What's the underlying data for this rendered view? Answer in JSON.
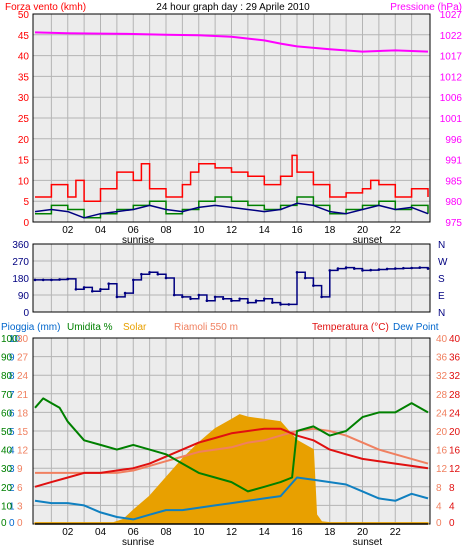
{
  "title": "24 hour graph day : 29 Aprile 2010",
  "x_ticks": [
    "02",
    "04",
    "06",
    "08",
    "10",
    "12",
    "14",
    "16",
    "18",
    "20",
    "22"
  ],
  "sun_labels": {
    "sunrise": "sunrise",
    "sunset": "sunset"
  },
  "colors": {
    "background": "#ececec",
    "grid": "#b4b4b4",
    "wind_axis": "#ff0000",
    "pressure": "#ff00ff",
    "gust": "#ff0000",
    "wind_avg": "#008000",
    "wind_line": "#000080",
    "direction": "#000080",
    "rain": "#000000",
    "humidity": "#008000",
    "solar": "#e8a000",
    "riamoli": "#1080c0",
    "temperature": "#e01010",
    "dewpoint": "#f08060",
    "blue_label": "#0066cc"
  },
  "chart_data": [
    {
      "type": "line",
      "title": "24 hour graph day : 29 Aprile 2010",
      "xlabel": "",
      "xlim": [
        0,
        24
      ],
      "left_axis": {
        "label": "Forza vento (kmh)",
        "ticks": [
          "0",
          "5",
          "10",
          "15",
          "20",
          "25",
          "30",
          "35",
          "40",
          "45",
          "50"
        ],
        "ylim": [
          0,
          50
        ]
      },
      "right_axis": {
        "label": "Pressione (hPa)",
        "ticks": [
          "975",
          "980",
          "985",
          "991",
          "996",
          "1001",
          "1006",
          "1012",
          "1017",
          "1022",
          "1027"
        ],
        "ylim": [
          975,
          1027
        ]
      },
      "series": [
        {
          "name": "Pressione (hPa)",
          "axis": "right",
          "x": [
            0,
            2,
            4,
            6,
            8,
            10,
            12,
            14,
            15,
            16,
            18,
            20,
            22,
            24
          ],
          "y": [
            1022.4,
            1022.2,
            1022.1,
            1022.0,
            1021.8,
            1021.7,
            1021.3,
            1020.4,
            1019.6,
            1018.9,
            1018.2,
            1017.6,
            1017.9,
            1017.6
          ]
        },
        {
          "x": [
            0,
            1,
            2,
            2.5,
            3,
            4,
            5,
            6,
            6.5,
            7,
            8,
            9,
            9.5,
            10,
            11,
            12,
            13,
            14,
            15,
            15.7,
            16,
            17,
            18,
            19,
            20,
            20.5,
            21,
            22,
            23,
            24
          ],
          "y": [
            6,
            9,
            6,
            10,
            5,
            8,
            12,
            10,
            14,
            8,
            6,
            9,
            12,
            14,
            13,
            12,
            11,
            9,
            11,
            16,
            12,
            9,
            6,
            7,
            8,
            10,
            9,
            6,
            8,
            6
          ]
        },
        {
          "x": [
            0,
            1,
            2,
            3,
            4,
            5,
            6,
            7,
            8,
            9,
            10,
            11,
            12,
            13,
            14,
            15,
            16,
            17,
            18,
            19,
            20,
            21,
            22,
            23,
            24
          ],
          "y": [
            2,
            4,
            3,
            1,
            2,
            3,
            4,
            5,
            2,
            3,
            5,
            6,
            5,
            4,
            3,
            4,
            6,
            4,
            2,
            3,
            4,
            5,
            3,
            4,
            2
          ]
        },
        {
          "x": [
            0,
            1,
            2,
            3,
            4,
            5,
            6,
            7,
            8,
            9,
            10,
            11,
            12,
            13,
            14,
            15,
            16,
            17,
            18,
            19,
            20,
            21,
            22,
            23,
            24
          ],
          "y": [
            2.5,
            3,
            2.5,
            1,
            2,
            2.5,
            3,
            4,
            3,
            2.5,
            3.5,
            4,
            3.5,
            3,
            2.5,
            3,
            4.5,
            4,
            2.5,
            2,
            3,
            4,
            3,
            3.5,
            2
          ]
        }
      ]
    },
    {
      "type": "scatter",
      "xlim": [
        0,
        24
      ],
      "left_axis": {
        "ticks": [
          "0",
          "90",
          "180",
          "270",
          "360"
        ],
        "ylim": [
          0,
          360
        ]
      },
      "right_axis": {
        "ticks": [
          "N",
          "E",
          "S",
          "W",
          "N"
        ]
      },
      "series": [
        {
          "x": [
            0,
            0.5,
            1,
            1.5,
            2,
            2.5,
            3,
            3.5,
            4,
            4.5,
            5,
            5.5,
            6,
            6.5,
            7,
            7.5,
            8,
            8.5,
            9,
            9.5,
            10,
            10.5,
            11,
            11.5,
            12,
            12.5,
            13,
            13.5,
            14,
            14.5,
            15,
            15.5,
            16,
            16.5,
            17,
            17.5,
            18,
            18.5,
            19,
            19.5,
            20,
            20.5,
            21,
            21.5,
            22,
            22.5,
            23,
            23.5,
            24
          ],
          "y": [
            170,
            170,
            170,
            172,
            175,
            120,
            130,
            110,
            120,
            150,
            80,
            100,
            170,
            200,
            210,
            200,
            180,
            90,
            80,
            70,
            90,
            60,
            80,
            70,
            60,
            70,
            50,
            60,
            70,
            50,
            40,
            40,
            210,
            180,
            140,
            80,
            220,
            230,
            235,
            230,
            220,
            222,
            225,
            228,
            230,
            232,
            233,
            235,
            230
          ]
        }
      ]
    },
    {
      "type": "line",
      "xlim": [
        0,
        24
      ],
      "legend": [
        "Pioggia (mm)",
        "Umidita %",
        "Solar",
        "Riamoli 550 m",
        "Temperatura (°C)",
        "Dew Point"
      ],
      "axes": {
        "pioggia": {
          "ticks": [
            "0",
            "1",
            "2",
            "3",
            "4",
            "5",
            "6",
            "7",
            "8",
            "9",
            "10"
          ]
        },
        "umidita": {
          "ticks": [
            "0",
            "10",
            "20",
            "30",
            "40",
            "50",
            "60",
            "70",
            "80",
            "90",
            "100"
          ]
        },
        "riamoli": {
          "ticks": [
            "0",
            "3",
            "6",
            "9",
            "12",
            "15",
            "18",
            "21",
            "24",
            "27",
            "30"
          ],
          "ylim": [
            0,
            30
          ]
        },
        "temp_left": {
          "ticks": [
            "0",
            "4",
            "8",
            "12",
            "16",
            "20",
            "24",
            "28",
            "32",
            "36",
            "40"
          ],
          "ylim": [
            0,
            40
          ]
        },
        "temp_right": {
          "ticks": [
            "0",
            "4",
            "8",
            "12",
            "16",
            "20",
            "24",
            "28",
            "32",
            "36",
            "40"
          ],
          "ylim": [
            0,
            40
          ]
        }
      },
      "series": [
        {
          "name": "Umidita %",
          "axis": "temp_right",
          "x": [
            0,
            0.5,
            1,
            1.5,
            2,
            3,
            4,
            5,
            6,
            7,
            8,
            9,
            10,
            11,
            12,
            13,
            14,
            15,
            15.7,
            16,
            17,
            18,
            19,
            20,
            21,
            22,
            23,
            23.5,
            24
          ],
          "y": [
            25,
            27,
            26,
            25,
            22,
            18,
            17,
            16,
            17,
            16,
            15,
            13,
            11,
            10,
            9,
            7,
            8,
            9,
            10,
            20,
            21,
            19,
            20,
            23,
            24,
            24,
            26,
            25,
            24
          ]
        },
        {
          "name": "Solar",
          "axis": "temp_right",
          "x": [
            0,
            4.8,
            5.4,
            6,
            7,
            8,
            9,
            10,
            11,
            12,
            12.5,
            13,
            14,
            15,
            16,
            17,
            17.2,
            17.5,
            18,
            24
          ],
          "y": [
            0.3,
            0.3,
            1,
            3,
            6,
            10,
            14,
            17.5,
            20.5,
            22.5,
            23.5,
            23,
            22.5,
            22,
            18,
            16,
            2,
            0.5,
            0.3,
            0.3
          ]
        },
        {
          "name": "Riamoli 550 m",
          "axis": "temp_right",
          "x": [
            0,
            1,
            2,
            3,
            4,
            5,
            6,
            7,
            8,
            9,
            10,
            11,
            12,
            13,
            14,
            15,
            16,
            17,
            18,
            19,
            20,
            21,
            22,
            23,
            24
          ],
          "y": [
            5,
            4.5,
            4.5,
            4,
            2.5,
            1.5,
            1,
            2,
            3,
            3,
            3.5,
            4,
            4.5,
            5,
            5.5,
            6,
            10,
            9.5,
            9,
            8.5,
            7,
            5.5,
            5,
            6.5,
            5.5
          ]
        },
        {
          "name": "Temperatura (°C)",
          "axis": "temp_right",
          "x": [
            0,
            1,
            2,
            3,
            4,
            5,
            6,
            7,
            8,
            9,
            10,
            11,
            12,
            13,
            14,
            15,
            16,
            17,
            18,
            19,
            20,
            21,
            22,
            23,
            24
          ],
          "y": [
            8,
            9,
            10,
            11,
            11,
            11.5,
            12,
            13,
            14.5,
            16,
            17.5,
            18.5,
            19.5,
            20,
            20.5,
            20.5,
            19,
            18,
            16,
            15,
            14,
            13.5,
            13,
            12.5,
            12
          ]
        },
        {
          "name": "Dew Point",
          "axis": "temp_right",
          "x": [
            0,
            1,
            2,
            3,
            4,
            5,
            6,
            7,
            8,
            9,
            10,
            11,
            12,
            13,
            14,
            15,
            16,
            17,
            18,
            19,
            20,
            21,
            22,
            23,
            24
          ],
          "y": [
            11,
            11,
            11,
            11,
            11,
            11,
            11.5,
            12.5,
            13.5,
            14.5,
            15.5,
            16,
            16.5,
            17.5,
            18,
            19,
            20,
            20.5,
            20,
            19,
            17.5,
            16,
            15,
            14,
            13
          ]
        },
        {
          "name": "Pioggia (mm)",
          "axis": "pioggia",
          "x": [
            0,
            24
          ],
          "y": [
            0,
            0
          ]
        }
      ]
    }
  ],
  "top_labels": {
    "left": "Forza vento (kmh)",
    "right": "Pressione (hPa)"
  },
  "bottom_labels": {
    "pioggia": "Pioggia (mm)",
    "umidita": "Umidita %",
    "solar": "Solar",
    "riamoli": "Riamoli 550 m",
    "temperatura": "Temperatura (°C)",
    "dewpoint": "Dew Point"
  }
}
